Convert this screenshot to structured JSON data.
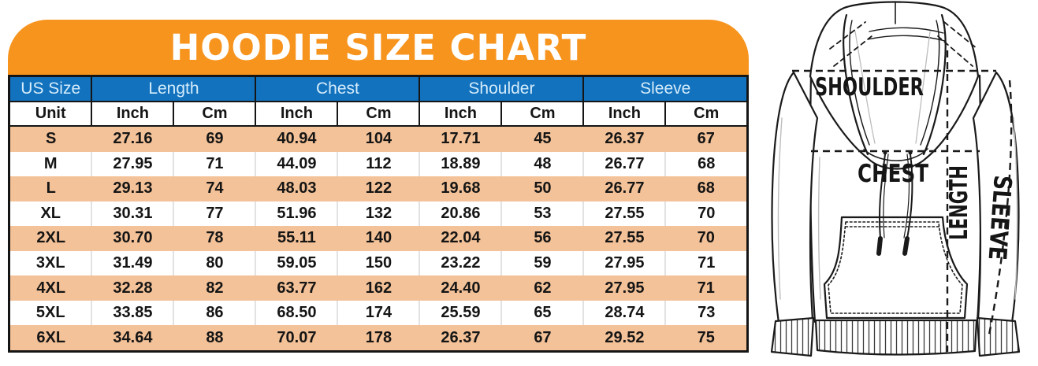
{
  "banner": {
    "title": "HOODIE SIZE CHART"
  },
  "table": {
    "group_headers": [
      {
        "label": "US Size",
        "span": 1
      },
      {
        "label": "Length",
        "span": 2
      },
      {
        "label": "Chest",
        "span": 2
      },
      {
        "label": "Shoulder",
        "span": 2
      },
      {
        "label": "Sleeve",
        "span": 2
      }
    ],
    "unit_headers": [
      "Unit",
      "Inch",
      "Cm",
      "Inch",
      "Cm",
      "Inch",
      "Cm",
      "Inch",
      "Cm"
    ],
    "rows": [
      [
        "S",
        "27.16",
        "69",
        "40.94",
        "104",
        "17.71",
        "45",
        "26.37",
        "67"
      ],
      [
        "M",
        "27.95",
        "71",
        "44.09",
        "112",
        "18.89",
        "48",
        "26.77",
        "68"
      ],
      [
        "L",
        "29.13",
        "74",
        "48.03",
        "122",
        "19.68",
        "50",
        "26.77",
        "68"
      ],
      [
        "XL",
        "30.31",
        "77",
        "51.96",
        "132",
        "20.86",
        "53",
        "27.55",
        "70"
      ],
      [
        "2XL",
        "30.70",
        "78",
        "55.11",
        "140",
        "22.04",
        "56",
        "27.55",
        "70"
      ],
      [
        "3XL",
        "31.49",
        "80",
        "59.05",
        "150",
        "23.22",
        "59",
        "27.95",
        "71"
      ],
      [
        "4XL",
        "32.28",
        "82",
        "63.77",
        "162",
        "24.40",
        "62",
        "27.95",
        "71"
      ],
      [
        "5XL",
        "33.85",
        "86",
        "68.50",
        "174",
        "25.59",
        "65",
        "28.74",
        "73"
      ],
      [
        "6XL",
        "34.64",
        "88",
        "70.07",
        "178",
        "26.37",
        "67",
        "29.52",
        "75"
      ]
    ]
  },
  "diagram": {
    "labels": {
      "shoulder": "SHOULDER",
      "chest": "CHEST",
      "length": "LENGTH",
      "sleeve": "SLEEVE"
    }
  },
  "colors": {
    "banner_orange": "#F7941E",
    "header_blue": "#1272BE",
    "header_text_light_blue": "#D5ECFB",
    "row_peach": "#F4C298",
    "row_white": "#FFFFFF",
    "border_black": "#151515",
    "text_black": "#151515",
    "title_white": "#FFFFFF"
  },
  "chart_data": {
    "type": "table",
    "title": "HOODIE SIZE CHART",
    "group_columns": [
      "US Size",
      "Length",
      "Chest",
      "Shoulder",
      "Sleeve"
    ],
    "columns": [
      "Unit",
      "Length Inch",
      "Length Cm",
      "Chest Inch",
      "Chest Cm",
      "Shoulder Inch",
      "Shoulder Cm",
      "Sleeve Inch",
      "Sleeve Cm"
    ],
    "rows": [
      [
        "S",
        27.16,
        69,
        40.94,
        104,
        17.71,
        45,
        26.37,
        67
      ],
      [
        "M",
        27.95,
        71,
        44.09,
        112,
        18.89,
        48,
        26.77,
        68
      ],
      [
        "L",
        29.13,
        74,
        48.03,
        122,
        19.68,
        50,
        26.77,
        68
      ],
      [
        "XL",
        30.31,
        77,
        51.96,
        132,
        20.86,
        53,
        27.55,
        70
      ],
      [
        "2XL",
        30.7,
        78,
        55.11,
        140,
        22.04,
        56,
        27.55,
        70
      ],
      [
        "3XL",
        31.49,
        80,
        59.05,
        150,
        23.22,
        59,
        27.95,
        71
      ],
      [
        "4XL",
        32.28,
        82,
        63.77,
        162,
        24.4,
        62,
        27.95,
        71
      ],
      [
        "5XL",
        33.85,
        86,
        68.5,
        174,
        25.59,
        65,
        28.74,
        73
      ],
      [
        "6XL",
        34.64,
        88,
        70.07,
        178,
        26.37,
        67,
        29.52,
        75
      ]
    ]
  }
}
